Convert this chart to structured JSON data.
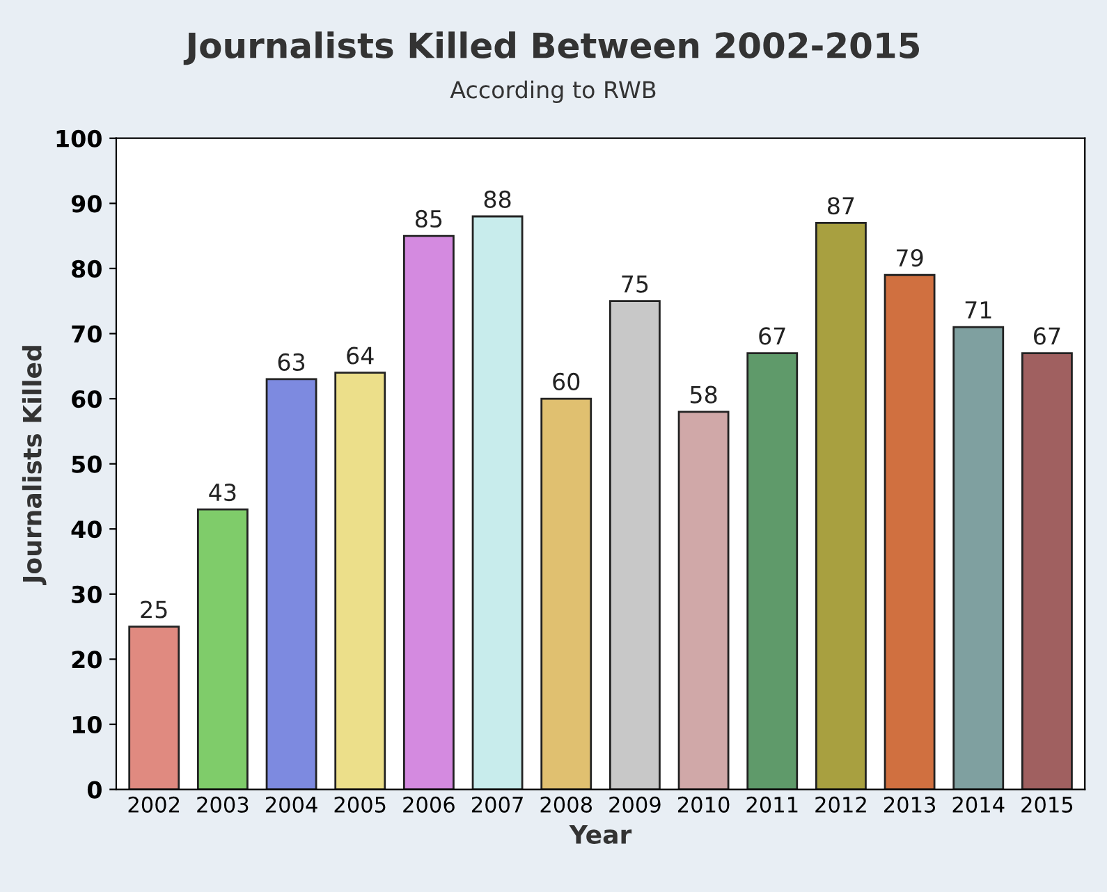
{
  "chart_data": {
    "type": "bar",
    "title": "Journalists Killed Between 2002-2015",
    "subtitle": "According to RWB",
    "xlabel": "Year",
    "ylabel": "Journalists Killed",
    "categories": [
      "2002",
      "2003",
      "2004",
      "2005",
      "2006",
      "2007",
      "2008",
      "2009",
      "2010",
      "2011",
      "2012",
      "2013",
      "2014",
      "2015"
    ],
    "values": [
      25,
      43,
      63,
      64,
      85,
      88,
      60,
      75,
      58,
      67,
      87,
      79,
      71,
      67
    ],
    "colors": [
      "#e08a80",
      "#7fcc6a",
      "#7d8ae0",
      "#ecdf8a",
      "#d48ae0",
      "#c8ecec",
      "#e0c070",
      "#c8c8c8",
      "#d0a8a8",
      "#5f9a6a",
      "#a8a040",
      "#d07040",
      "#7fa0a0",
      "#a06060"
    ],
    "ylim": [
      0,
      100
    ],
    "yticks": [
      0,
      10,
      20,
      30,
      40,
      50,
      60,
      70,
      80,
      90,
      100
    ],
    "data_labels": true,
    "grid": false,
    "legend": false
  }
}
